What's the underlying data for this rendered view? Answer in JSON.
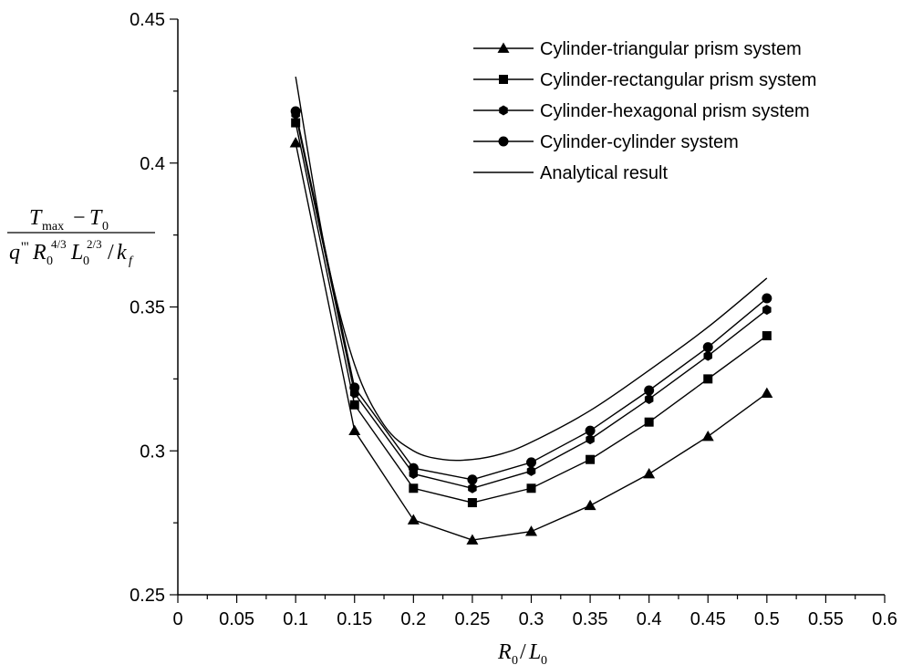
{
  "chart_data": {
    "type": "line",
    "title": "",
    "xlabel": "R0/L0",
    "ylabel": "(Tmax − T0) / (q''' R0^(4/3) L0^(2/3) / kf)",
    "xlim": [
      0,
      0.6
    ],
    "ylim": [
      0.25,
      0.45
    ],
    "x_ticks": [
      "0",
      "0.05",
      "0.1",
      "0.15",
      "0.2",
      "0.25",
      "0.3",
      "0.35",
      "0.4",
      "0.45",
      "0.5",
      "0.55",
      "0.6"
    ],
    "y_ticks": [
      "0.25",
      "0.3",
      "0.35",
      "0.4",
      "0.45"
    ],
    "grid": false,
    "legend_position": "top-right",
    "x": [
      0.1,
      0.15,
      0.2,
      0.25,
      0.3,
      0.35,
      0.4,
      0.45,
      0.5
    ],
    "series": [
      {
        "name": "Cylinder-triangular prism system",
        "marker": "triangle",
        "values": [
          0.407,
          0.307,
          0.276,
          0.269,
          0.272,
          0.281,
          0.292,
          0.305,
          0.32
        ]
      },
      {
        "name": "Cylinder-rectangular prism system",
        "marker": "square",
        "values": [
          0.414,
          0.316,
          0.287,
          0.282,
          0.287,
          0.297,
          0.31,
          0.325,
          0.34
        ]
      },
      {
        "name": "Cylinder-hexagonal prism system",
        "marker": "hexagon",
        "values": [
          0.417,
          0.32,
          0.292,
          0.287,
          0.293,
          0.304,
          0.318,
          0.333,
          0.349
        ]
      },
      {
        "name": "Cylinder-cylinder system",
        "marker": "circle",
        "values": [
          0.418,
          0.322,
          0.294,
          0.29,
          0.296,
          0.307,
          0.321,
          0.336,
          0.353
        ]
      },
      {
        "name": "Analytical result",
        "marker": "none",
        "x": [
          0.1,
          0.125,
          0.15,
          0.175,
          0.2,
          0.225,
          0.25,
          0.275,
          0.3,
          0.35,
          0.4,
          0.45,
          0.5
        ],
        "values": [
          0.43,
          0.37,
          0.33,
          0.309,
          0.3,
          0.297,
          0.297,
          0.299,
          0.303,
          0.314,
          0.328,
          0.343,
          0.36
        ]
      }
    ]
  }
}
